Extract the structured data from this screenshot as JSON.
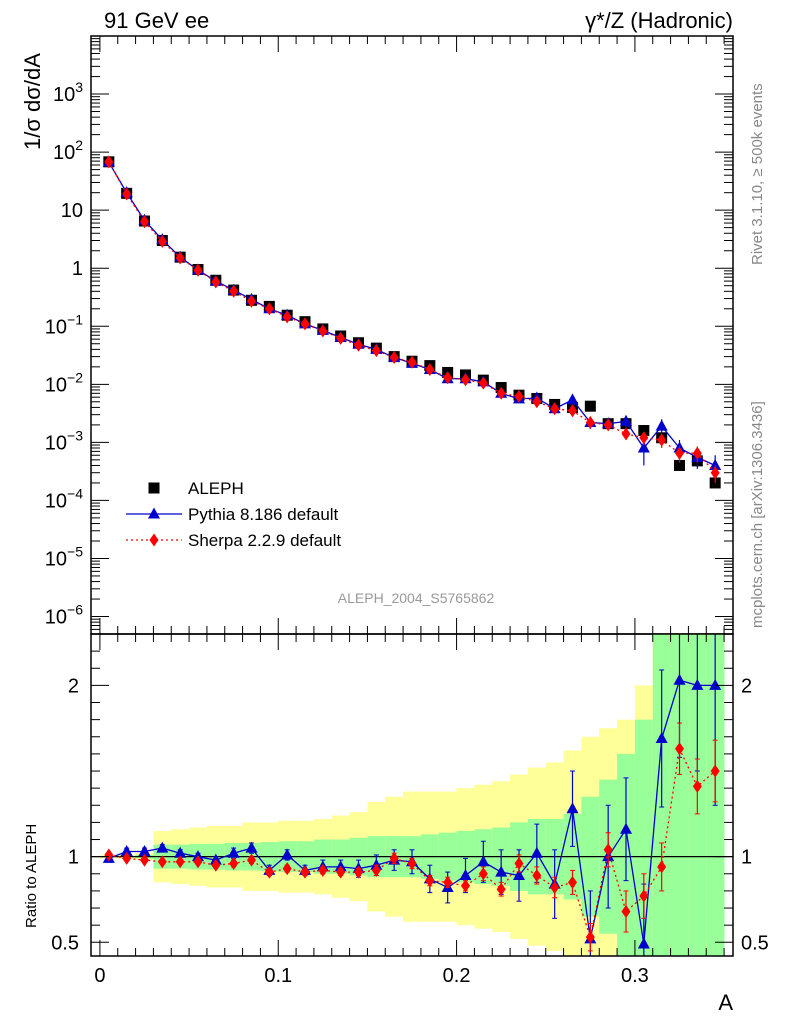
{
  "header": {
    "left": "91 GeV ee",
    "right": "γ*/Z (Hadronic)"
  },
  "side_labels": {
    "top": "Rivet 3.1.10, ≥ 500k events",
    "bottom": "mcplots.cern.ch [arXiv:1306.3436]"
  },
  "analysis_id": "ALEPH_2004_S5765862",
  "chart_data": [
    {
      "type": "scatter",
      "panel": "main",
      "ylabel": "1/σ  dσ/dA",
      "yscale": "log",
      "ylim": [
        5e-07,
        10000.0
      ],
      "xlim": [
        -0.005,
        0.355
      ],
      "y_ticks": [
        {
          "v": 1e-06,
          "m": "10",
          "e": "−6"
        },
        {
          "v": 1e-05,
          "m": "10",
          "e": "−5"
        },
        {
          "v": 0.0001,
          "m": "10",
          "e": "−4"
        },
        {
          "v": 0.001,
          "m": "10",
          "e": "−3"
        },
        {
          "v": 0.01,
          "m": "10",
          "e": "−2"
        },
        {
          "v": 0.1,
          "m": "10",
          "e": "−1"
        },
        {
          "v": 1,
          "m": "1",
          "e": ""
        },
        {
          "v": 10,
          "m": "10",
          "e": ""
        },
        {
          "v": 100,
          "m": "10",
          "e": "2"
        },
        {
          "v": 1000,
          "m": "10",
          "e": "3"
        }
      ],
      "legend": {
        "position": "bottom-left",
        "entries": [
          "ALEPH",
          "Pythia 8.186 default",
          "Sherpa 2.2.9 default"
        ]
      },
      "x": [
        0.005,
        0.015,
        0.025,
        0.035,
        0.045,
        0.055,
        0.065,
        0.075,
        0.085,
        0.095,
        0.105,
        0.115,
        0.125,
        0.135,
        0.145,
        0.155,
        0.165,
        0.175,
        0.185,
        0.195,
        0.205,
        0.215,
        0.225,
        0.235,
        0.245,
        0.255,
        0.265,
        0.275,
        0.285,
        0.295,
        0.305,
        0.315,
        0.325,
        0.335,
        0.345
      ],
      "series": [
        {
          "name": "ALEPH",
          "marker": "square",
          "color": "#000000",
          "values": [
            68,
            19.5,
            6.5,
            3.0,
            1.55,
            0.95,
            0.62,
            0.42,
            0.28,
            0.22,
            0.155,
            0.12,
            0.09,
            0.068,
            0.052,
            0.042,
            0.03,
            0.025,
            0.021,
            0.016,
            0.0145,
            0.0118,
            0.0088,
            0.0065,
            0.0057,
            0.0045,
            0.004,
            0.0042,
            0.0021,
            0.0021,
            0.0016,
            0.0012,
            0.0004,
            0.00048,
            0.0002
          ]
        },
        {
          "name": "Pythia 8.186 default",
          "marker": "triangle",
          "color": "#0000cc",
          "line": "solid",
          "values": [
            67,
            20,
            6.7,
            3.1,
            1.55,
            0.93,
            0.6,
            0.42,
            0.29,
            0.2,
            0.155,
            0.11,
            0.085,
            0.064,
            0.049,
            0.04,
            0.029,
            0.023,
            0.018,
            0.0125,
            0.0125,
            0.011,
            0.007,
            0.0056,
            0.0058,
            0.0038,
            0.0054,
            0.0022,
            0.0021,
            0.0023,
            0.0008,
            0.0019,
            0.0008,
            0.00055,
            0.0004
          ],
          "yerr": [
            0,
            0,
            0,
            0,
            0,
            0,
            0,
            0,
            0,
            0,
            0,
            0,
            0,
            0,
            0,
            0,
            0,
            0,
            0,
            0,
            0,
            0,
            0,
            0,
            0,
            0.0005,
            0.0012,
            0.0005,
            0.0004,
            0.0006,
            0.0004,
            0.0006,
            0.0003,
            0.0002,
            0.0002
          ]
        },
        {
          "name": "Sherpa 2.2.9 default",
          "marker": "diamond",
          "color": "#ff0000",
          "line": "dotted",
          "values": [
            68,
            19,
            6.3,
            2.9,
            1.5,
            0.92,
            0.58,
            0.4,
            0.27,
            0.2,
            0.145,
            0.11,
            0.083,
            0.062,
            0.047,
            0.038,
            0.029,
            0.024,
            0.018,
            0.013,
            0.012,
            0.0105,
            0.007,
            0.0062,
            0.005,
            0.0038,
            0.0035,
            0.0022,
            0.002,
            0.0014,
            0.0012,
            0.0011,
            0.00065,
            0.00065,
            0.0003
          ],
          "yerr": [
            0,
            0,
            0,
            0,
            0,
            0,
            0,
            0,
            0,
            0,
            0,
            0,
            0,
            0,
            0,
            0,
            0,
            0,
            0,
            0,
            0,
            0,
            0,
            0,
            0,
            0.0004,
            0.0005,
            0.0004,
            0.0004,
            0.0003,
            0.0003,
            0.0003,
            0.0002,
            0.0002,
            0.0001
          ]
        }
      ]
    },
    {
      "type": "scatter",
      "panel": "ratio",
      "xlabel": "A",
      "ylabel": "Ratio to ALEPH",
      "ylim": [
        0.42,
        2.3
      ],
      "xlim": [
        -0.005,
        0.355
      ],
      "x_ticks": [
        {
          "v": 0,
          "label": "0"
        },
        {
          "v": 0.1,
          "label": "0.1"
        },
        {
          "v": 0.2,
          "label": "0.2"
        },
        {
          "v": 0.3,
          "label": "0.3"
        }
      ],
      "y_ticks": [
        {
          "v": 0.5,
          "label": "0.5"
        },
        {
          "v": 1,
          "label": "1"
        },
        {
          "v": 2,
          "label": "2"
        }
      ],
      "bin_edges": [
        0,
        0.01,
        0.02,
        0.03,
        0.04,
        0.05,
        0.06,
        0.07,
        0.08,
        0.09,
        0.1,
        0.11,
        0.12,
        0.13,
        0.14,
        0.15,
        0.16,
        0.17,
        0.18,
        0.19,
        0.2,
        0.21,
        0.22,
        0.23,
        0.24,
        0.25,
        0.26,
        0.27,
        0.28,
        0.29,
        0.3,
        0.31,
        0.32,
        0.33,
        0.34,
        0.35
      ],
      "band_stat_half": [
        0.004,
        0.006,
        0.01,
        0.07,
        0.07,
        0.075,
        0.075,
        0.08,
        0.08,
        0.085,
        0.09,
        0.09,
        0.1,
        0.1,
        0.11,
        0.12,
        0.12,
        0.12,
        0.13,
        0.14,
        0.15,
        0.16,
        0.17,
        0.2,
        0.22,
        0.22,
        0.25,
        0.35,
        0.45,
        0.6,
        0.8,
        1.3,
        1.5,
        1.5,
        1.5
      ],
      "band_total_half": [
        0.008,
        0.012,
        0.02,
        0.15,
        0.16,
        0.17,
        0.18,
        0.18,
        0.2,
        0.2,
        0.21,
        0.21,
        0.22,
        0.24,
        0.26,
        0.32,
        0.35,
        0.38,
        0.38,
        0.38,
        0.4,
        0.42,
        0.44,
        0.48,
        0.52,
        0.55,
        0.62,
        0.7,
        0.75,
        0.8,
        1.0,
        1.4,
        1.6,
        1.6,
        1.6
      ],
      "x": [
        0.005,
        0.015,
        0.025,
        0.035,
        0.045,
        0.055,
        0.065,
        0.075,
        0.085,
        0.095,
        0.105,
        0.115,
        0.125,
        0.135,
        0.145,
        0.155,
        0.165,
        0.175,
        0.185,
        0.195,
        0.205,
        0.215,
        0.225,
        0.235,
        0.245,
        0.255,
        0.265,
        0.275,
        0.285,
        0.295,
        0.305,
        0.315,
        0.325,
        0.335,
        0.345
      ],
      "series": [
        {
          "name": "Pythia 8.186 default",
          "marker": "triangle",
          "color": "#0000cc",
          "line": "solid",
          "values": [
            0.99,
            1.03,
            1.03,
            1.05,
            1.02,
            1.0,
            0.98,
            1.02,
            1.05,
            0.92,
            1.01,
            0.92,
            0.94,
            0.94,
            0.93,
            0.95,
            0.98,
            0.97,
            0.87,
            0.82,
            0.89,
            0.97,
            0.91,
            0.89,
            1.02,
            0.84,
            1.28,
            0.52,
            1.0,
            1.16,
            0.49,
            1.69,
            2.03,
            2.0,
            2.0
          ],
          "yerr": [
            0.01,
            0.02,
            0.02,
            0.02,
            0.02,
            0.02,
            0.02,
            0.03,
            0.03,
            0.03,
            0.03,
            0.03,
            0.04,
            0.04,
            0.05,
            0.06,
            0.06,
            0.07,
            0.08,
            0.09,
            0.1,
            0.12,
            0.13,
            0.15,
            0.17,
            0.2,
            0.22,
            0.28,
            0.3,
            0.3,
            0.35,
            0.4,
            0.45,
            0.5,
            0.7
          ]
        },
        {
          "name": "Sherpa 2.2.9 default",
          "marker": "diamond",
          "color": "#ff0000",
          "line": "dotted",
          "values": [
            1.01,
            0.99,
            0.98,
            0.97,
            0.97,
            0.97,
            0.95,
            0.96,
            0.98,
            0.91,
            0.93,
            0.91,
            0.92,
            0.91,
            0.91,
            0.92,
            0.99,
            0.96,
            0.86,
            0.85,
            0.83,
            0.9,
            0.81,
            0.96,
            0.89,
            0.82,
            0.85,
            0.53,
            1.04,
            0.68,
            0.77,
            0.94,
            1.63,
            1.41,
            1.5
          ],
          "yerr": [
            0.01,
            0.01,
            0.01,
            0.01,
            0.01,
            0.01,
            0.01,
            0.02,
            0.02,
            0.02,
            0.02,
            0.02,
            0.02,
            0.02,
            0.02,
            0.03,
            0.03,
            0.03,
            0.03,
            0.03,
            0.03,
            0.04,
            0.04,
            0.05,
            0.05,
            0.06,
            0.07,
            0.08,
            0.1,
            0.12,
            0.13,
            0.14,
            0.15,
            0.16,
            0.18
          ]
        }
      ]
    }
  ]
}
